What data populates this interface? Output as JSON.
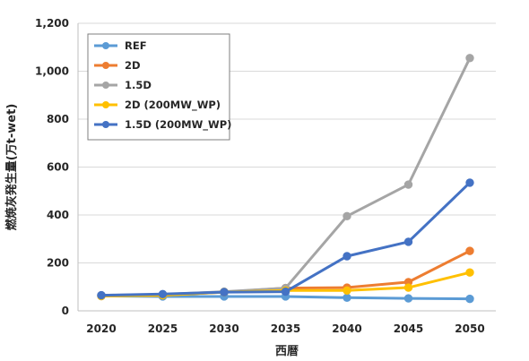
{
  "chart_data": {
    "type": "line",
    "title": "",
    "xlabel": "西暦",
    "ylabel": "燃焼灰発生量(万t-wet)",
    "x": [
      2020,
      2025,
      2030,
      2035,
      2040,
      2045,
      2050
    ],
    "x_tick_labels": [
      "2020",
      "2025",
      "2030",
      "2035",
      "2040",
      "2045",
      "2050"
    ],
    "ylim": [
      0,
      1200
    ],
    "y_ticks": [
      0,
      200,
      400,
      600,
      800,
      1000,
      1200
    ],
    "y_tick_labels": [
      "0",
      "200",
      "400",
      "600",
      "800",
      "1,000",
      "1,200"
    ],
    "grid": "horizontal",
    "legend_position": "top-left",
    "series": [
      {
        "name": "REF",
        "color": "#5b9bd5",
        "values": [
          62,
          60,
          60,
          60,
          55,
          52,
          50
        ]
      },
      {
        "name": "2D",
        "color": "#ed7d31",
        "values": [
          62,
          65,
          78,
          95,
          97,
          120,
          250
        ]
      },
      {
        "name": "1.5D",
        "color": "#a5a5a5",
        "values": [
          65,
          68,
          80,
          95,
          395,
          527,
          1055
        ]
      },
      {
        "name": "2D (200MW_WP)",
        "color": "#ffc000",
        "values": [
          62,
          65,
          78,
          85,
          85,
          97,
          160
        ]
      },
      {
        "name": "1.5D (200MW_WP)",
        "color": "#4472c4",
        "values": [
          65,
          70,
          78,
          80,
          228,
          288,
          535
        ]
      }
    ]
  }
}
